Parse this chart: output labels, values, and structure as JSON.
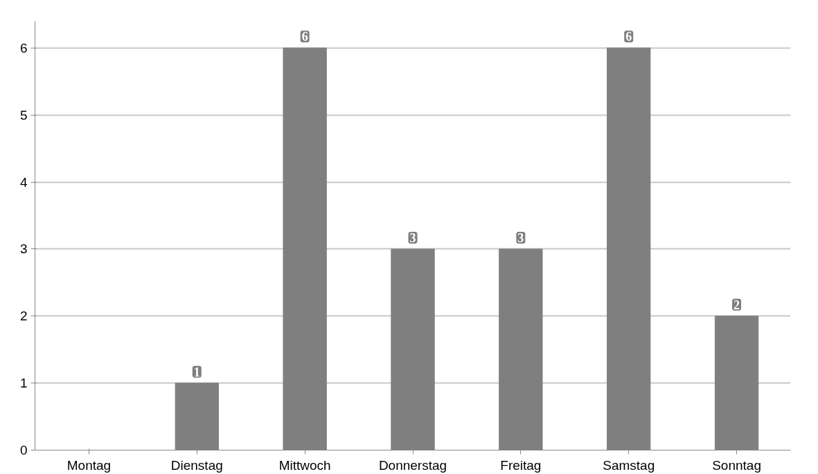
{
  "chart_data": {
    "type": "bar",
    "categories": [
      "Montag",
      "Dienstag",
      "Mittwoch",
      "Donnerstag",
      "Freitag",
      "Samstag",
      "Sonntag"
    ],
    "values": [
      0,
      1,
      6,
      3,
      3,
      6,
      2
    ],
    "value_labels": [
      null,
      "1",
      "6",
      "3",
      "3",
      "6",
      "2"
    ],
    "color": "#7f7f7f",
    "ylim": [
      0,
      6.4
    ],
    "yticks": [
      0,
      1,
      2,
      3,
      4,
      5,
      6
    ],
    "grid": "y"
  }
}
